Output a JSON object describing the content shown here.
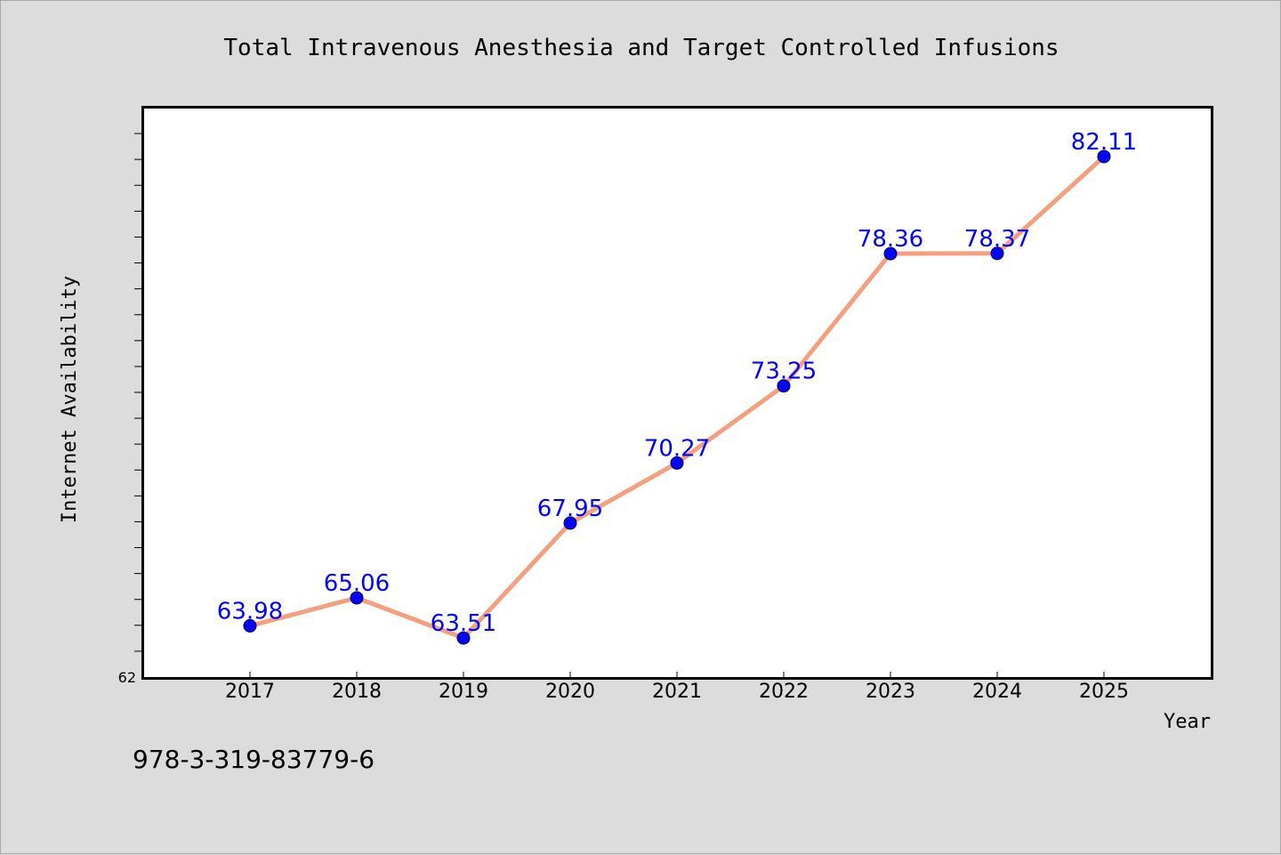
{
  "chart_data": {
    "type": "line",
    "title": "Total Intravenous Anesthesia and Target Controlled Infusions",
    "xlabel": "Year",
    "ylabel": "Internet Availability",
    "categories": [
      "2017",
      "2018",
      "2019",
      "2020",
      "2021",
      "2022",
      "2023",
      "2024",
      "2025"
    ],
    "series": [
      {
        "values": [
          63.98,
          65.06,
          63.51,
          67.95,
          70.27,
          73.25,
          78.36,
          78.37,
          82.11
        ],
        "labels": [
          "63.98",
          "65.06",
          "63.51",
          "67.95",
          "70.27",
          "73.25",
          "78.36",
          "78.37",
          "82.11"
        ]
      }
    ],
    "x_range": [
      "2016",
      "2026"
    ],
    "ylim": [
      62,
      84
    ],
    "y_tick_step": 1,
    "y_min_label": "62",
    "grid": false,
    "line_color": "#f4a07f",
    "marker_color": "#0000ff",
    "label_color": "#0000ff"
  },
  "footnote": "978-3-319-83779-6"
}
